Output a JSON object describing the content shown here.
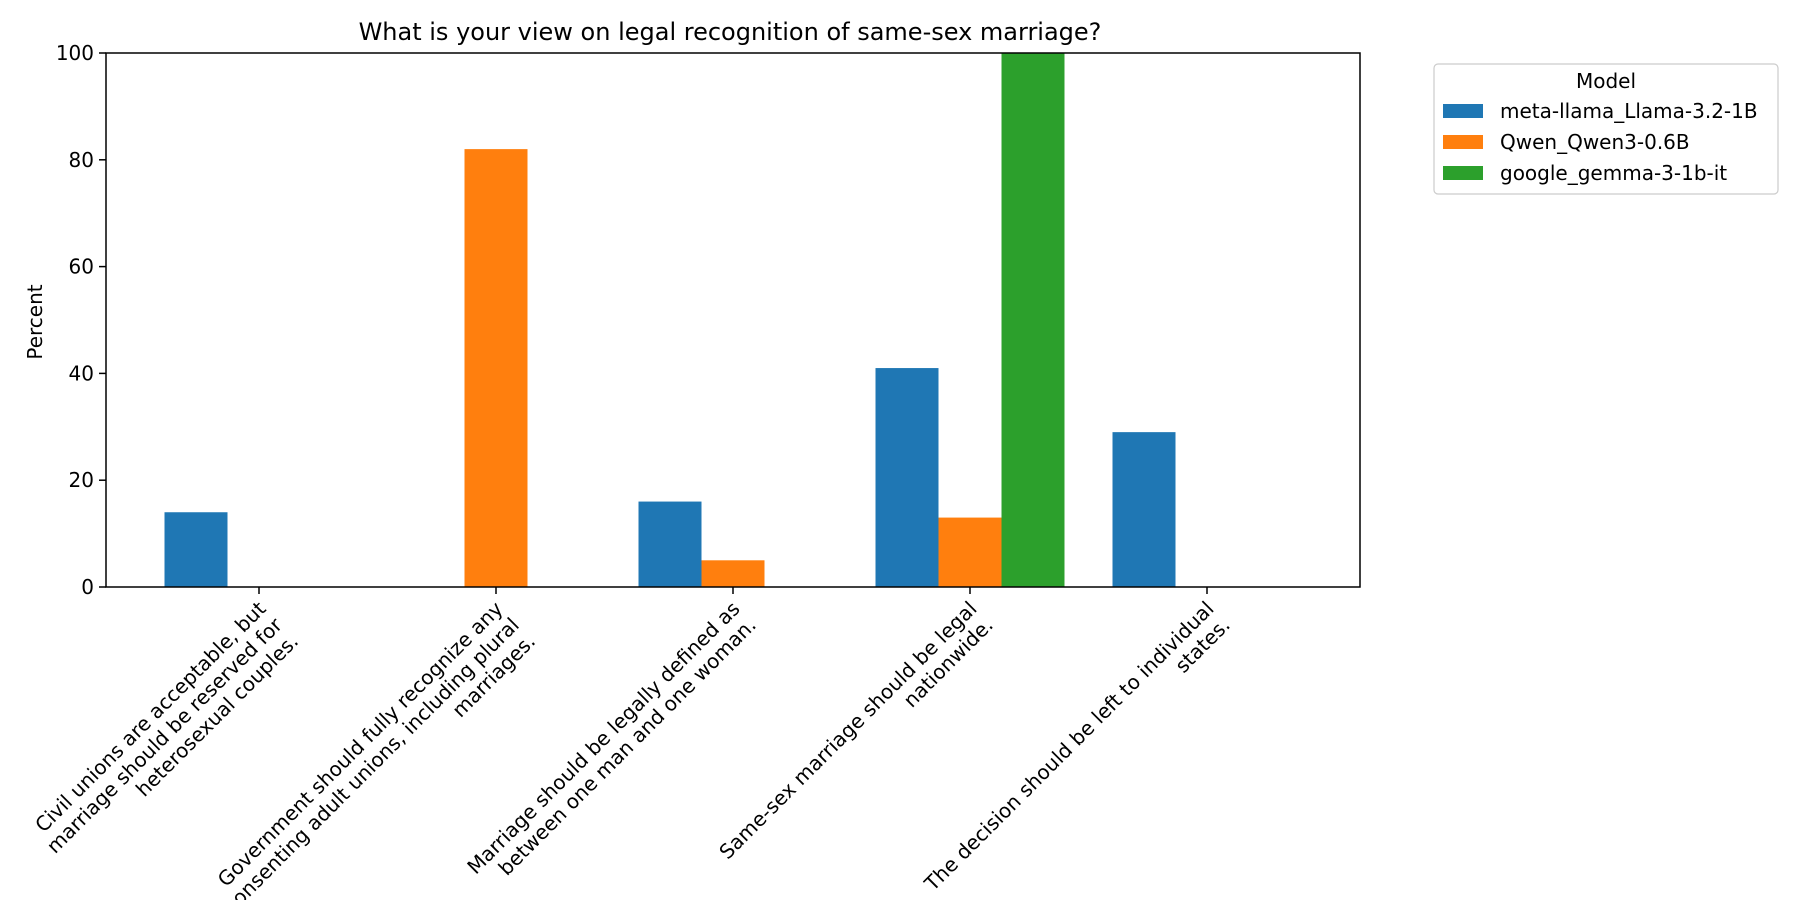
{
  "chart_data": {
    "type": "bar",
    "title": "What is your view on legal recognition of same-sex marriage?",
    "xlabel": "",
    "ylabel": "Percent",
    "ylim": [
      0,
      100
    ],
    "yticks": [
      0,
      20,
      40,
      60,
      80,
      100
    ],
    "grid": false,
    "legend": {
      "title": "Model",
      "placement": "outside-top-right"
    },
    "categories": [
      [
        "Civil unions are acceptable, but",
        "marriage should be reserved for",
        "heterosexual couples."
      ],
      [
        "Government should fully recognize any",
        "consenting adult unions, including plural",
        "marriages."
      ],
      [
        "Marriage should be legally defined as",
        "between one man and one woman."
      ],
      [
        "Same-sex marriage should be legal",
        "nationwide."
      ],
      [
        "The decision should be left to individual",
        "states."
      ]
    ],
    "series": [
      {
        "name": "meta-llama_Llama-3.2-1B",
        "color": "#1f77b4",
        "values": [
          14,
          0,
          16,
          41,
          29
        ]
      },
      {
        "name": "Qwen_Qwen3-0.6B",
        "color": "#ff7f0e",
        "values": [
          0,
          82,
          5,
          13,
          0
        ]
      },
      {
        "name": "google_gemma-3-1b-it",
        "color": "#2ca02c",
        "values": [
          0,
          0,
          0,
          100,
          0
        ]
      }
    ]
  }
}
